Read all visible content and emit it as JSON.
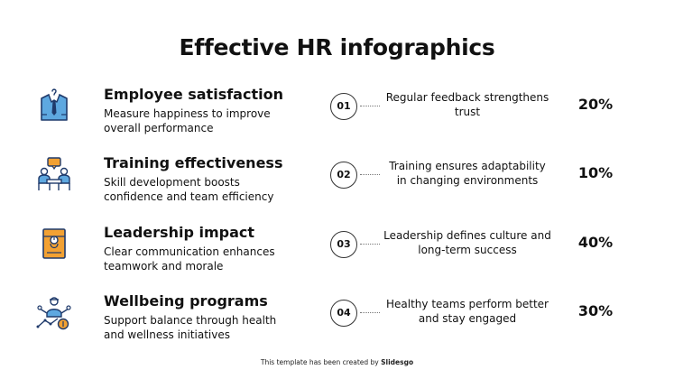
{
  "title": "Effective HR infographics",
  "colors": {
    "navy": "#1f3a6b",
    "blue": "#5ea8e0",
    "orange": "#f2a133",
    "text": "#111111"
  },
  "items": [
    {
      "title": "Employee satisfaction",
      "description": "Measure happiness to improve overall performance",
      "number": "01",
      "statement": "Regular feedback strengthens trust",
      "percent": "20%",
      "icon": "shirt-tie-icon"
    },
    {
      "title": "Training effectiveness",
      "description": "Skill development boosts confidence and team efficiency",
      "number": "02",
      "statement": "Training ensures adaptability in changing environments",
      "percent": "10%",
      "icon": "team-meeting-icon"
    },
    {
      "title": "Leadership impact",
      "description": "Clear communication enhances teamwork and morale",
      "number": "03",
      "statement": "Leadership defines culture and long-term success",
      "percent": "40%",
      "icon": "folder-icon"
    },
    {
      "title": "Wellbeing programs",
      "description": "Support balance through health and wellness initiatives",
      "number": "04",
      "statement": "Healthy teams perform better and stay engaged",
      "percent": "30%",
      "icon": "network-person-icon"
    }
  ],
  "footer": {
    "prefix": "This template has been created by ",
    "brand": "Slidesgo"
  }
}
